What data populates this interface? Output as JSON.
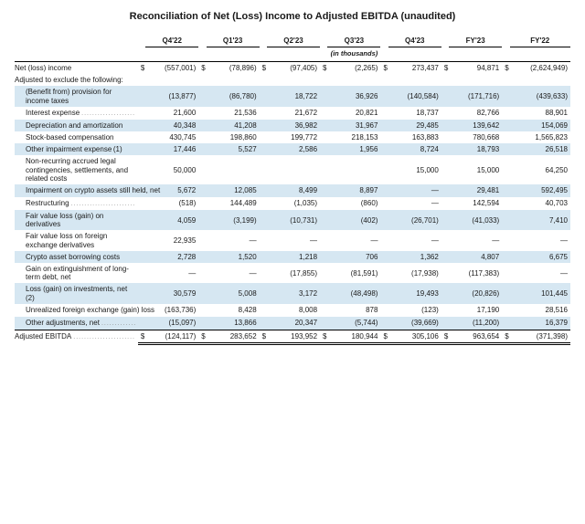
{
  "title": "Reconciliation of Net (Loss) Income to Adjusted EBITDA (unaudited)",
  "unit_note": "(in thousands)",
  "columns": [
    "Q4'22",
    "Q1'23",
    "Q2'23",
    "Q3'23",
    "Q4'23",
    "FY'23",
    "FY'22"
  ],
  "currency_symbol": "$",
  "colors": {
    "band": "#d6e7f2",
    "text": "#1a1a1a",
    "rule": "#000000",
    "bg": "#ffffff"
  },
  "rows": [
    {
      "label": "Net (loss) income",
      "indent": 0,
      "band": false,
      "show_currency": true,
      "topline": true,
      "vals": [
        "(557,001)",
        "(78,896)",
        "(97,405)",
        "(2,265)",
        "273,437",
        "94,871",
        "(2,624,949)"
      ]
    },
    {
      "label": "Adjusted to exclude the following:",
      "indent": 0,
      "band": false,
      "vals": [
        "",
        "",
        "",
        "",
        "",
        "",
        ""
      ]
    },
    {
      "label": "(Benefit from) provision for income taxes",
      "indent": 1,
      "band": true,
      "vals": [
        "(13,877)",
        "(86,780)",
        "18,722",
        "36,926",
        "(140,584)",
        "(171,716)",
        "(439,633)"
      ]
    },
    {
      "label": "Interest expense",
      "indent": 1,
      "band": false,
      "dots": true,
      "vals": [
        "21,600",
        "21,536",
        "21,672",
        "20,821",
        "18,737",
        "82,766",
        "88,901"
      ]
    },
    {
      "label": "Depreciation and amortization",
      "indent": 1,
      "band": true,
      "vals": [
        "40,348",
        "41,208",
        "36,982",
        "31,967",
        "29,485",
        "139,642",
        "154,069"
      ]
    },
    {
      "label": "Stock-based compensation",
      "indent": 1,
      "band": false,
      "vals": [
        "430,745",
        "198,860",
        "199,772",
        "218,153",
        "163,883",
        "780,668",
        "1,565,823"
      ]
    },
    {
      "label": "Other impairment expense (1)",
      "indent": 1,
      "band": true,
      "vals": [
        "17,446",
        "5,527",
        "2,586",
        "1,956",
        "8,724",
        "18,793",
        "26,518"
      ]
    },
    {
      "label": "Non-recurring accrued legal contingencies, settlements, and related costs",
      "indent": 1,
      "band": false,
      "vals": [
        "50,000",
        "",
        "",
        "",
        "15,000",
        "15,000",
        "64,250"
      ]
    },
    {
      "label": "Impairment on crypto assets still held, net",
      "indent": 1,
      "band": true,
      "dots": true,
      "vals": [
        "5,672",
        "12,085",
        "8,499",
        "8,897",
        "—",
        "29,481",
        "592,495"
      ]
    },
    {
      "label": "Restructuring",
      "indent": 1,
      "band": false,
      "dots": true,
      "vals": [
        "(518)",
        "144,489",
        "(1,035)",
        "(860)",
        "—",
        "142,594",
        "40,703"
      ]
    },
    {
      "label": "Fair value loss (gain) on derivatives",
      "indent": 1,
      "band": true,
      "vals": [
        "4,059",
        "(3,199)",
        "(10,731)",
        "(402)",
        "(26,701)",
        "(41,033)",
        "7,410"
      ]
    },
    {
      "label": "Fair value loss on foreign exchange derivatives",
      "indent": 1,
      "band": false,
      "vals": [
        "22,935",
        "—",
        "—",
        "—",
        "—",
        "—",
        "—"
      ]
    },
    {
      "label": "Crypto asset borrowing costs",
      "indent": 1,
      "band": true,
      "vals": [
        "2,728",
        "1,520",
        "1,218",
        "706",
        "1,362",
        "4,807",
        "6,675"
      ]
    },
    {
      "label": "Gain on extinguishment of long-term debt, net",
      "indent": 1,
      "band": false,
      "vals": [
        "—",
        "—",
        "(17,855)",
        "(81,591)",
        "(17,938)",
        "(117,383)",
        "—"
      ]
    },
    {
      "label": "Loss (gain) on investments, net (2)",
      "indent": 1,
      "band": true,
      "vals": [
        "30,579",
        "5,008",
        "3,172",
        "(48,498)",
        "19,493",
        "(20,826)",
        "101,445"
      ]
    },
    {
      "label": "Unrealized foreign exchange (gain) loss",
      "indent": 1,
      "band": false,
      "dots": true,
      "vals": [
        "(163,736)",
        "8,428",
        "8,008",
        "878",
        "(123)",
        "17,190",
        "28,516"
      ]
    },
    {
      "label": "Other adjustments, net",
      "indent": 1,
      "band": true,
      "dots": true,
      "vals": [
        "(15,097)",
        "13,866",
        "20,347",
        "(5,744)",
        "(39,669)",
        "(11,200)",
        "16,379"
      ]
    },
    {
      "label": "Adjusted EBITDA",
      "indent": 0,
      "band": false,
      "show_currency": true,
      "topline": true,
      "double": true,
      "dots": true,
      "vals": [
        "(124,117)",
        "283,652",
        "193,952",
        "180,944",
        "305,106",
        "963,654",
        "(371,398)"
      ]
    }
  ]
}
